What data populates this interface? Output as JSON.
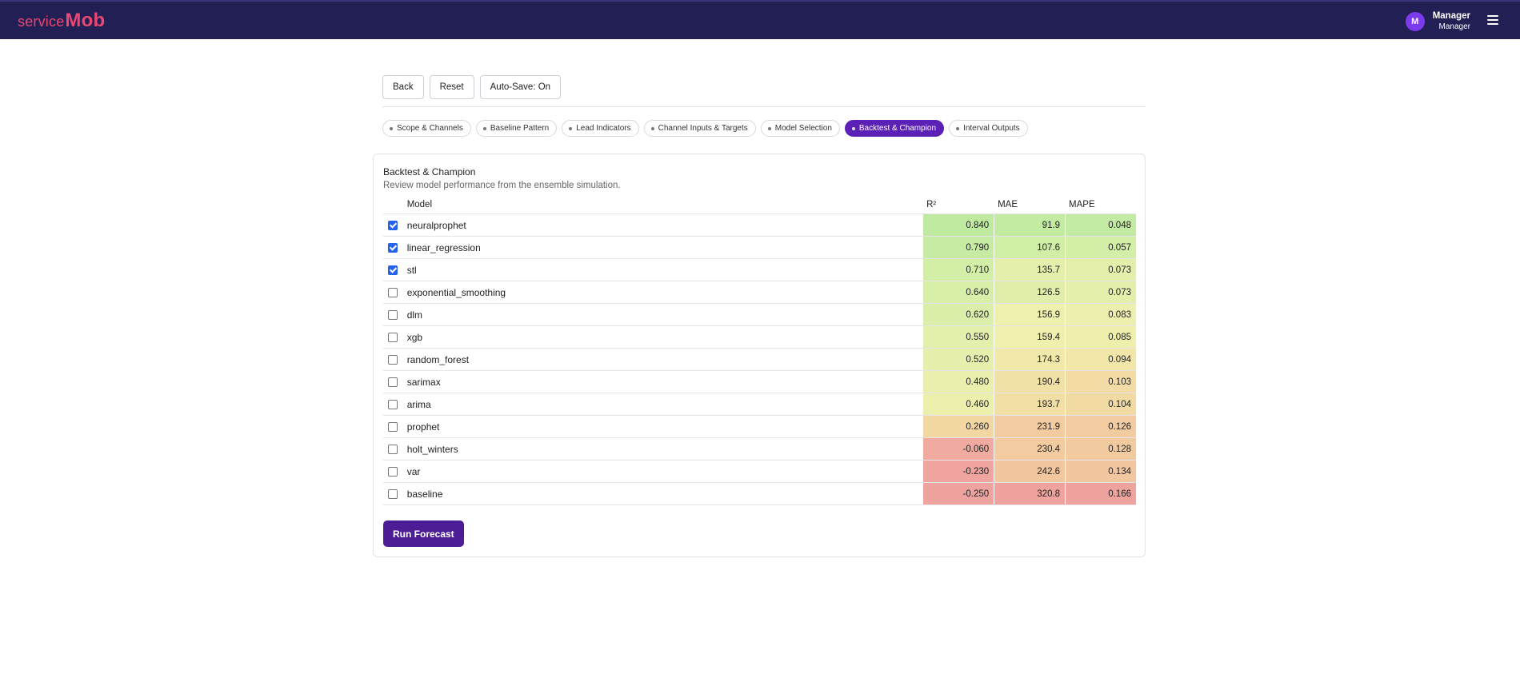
{
  "app": {
    "logo_text": "service",
    "logo_mark": "Mob",
    "user_initial": "M",
    "user_name": "Manager",
    "user_role": "Manager"
  },
  "toolbar": {
    "back_label": "Back",
    "reset_label": "Reset",
    "autosave_label": "Auto-Save: On"
  },
  "steps": [
    {
      "label": "Scope & Channels",
      "active": false
    },
    {
      "label": "Baseline Pattern",
      "active": false
    },
    {
      "label": "Lead Indicators",
      "active": false
    },
    {
      "label": "Channel Inputs & Targets",
      "active": false
    },
    {
      "label": "Model Selection",
      "active": false
    },
    {
      "label": "Backtest & Champion",
      "active": true
    },
    {
      "label": "Interval Outputs",
      "active": false
    }
  ],
  "card": {
    "title": "Backtest & Champion",
    "subtitle": "Review model performance from the ensemble simulation."
  },
  "table": {
    "headers": {
      "model": "Model",
      "r2": "R²",
      "mae": "MAE",
      "mape": "MAPE"
    },
    "rows": [
      {
        "model": "neuralprophet",
        "checked": true,
        "r2": "0.840",
        "mae": "91.9",
        "mape": "0.048",
        "colors": [
          "#bfeaa0",
          "#c3eba2",
          "#c4eba3"
        ]
      },
      {
        "model": "linear_regression",
        "checked": true,
        "r2": "0.790",
        "mae": "107.6",
        "mape": "0.057",
        "colors": [
          "#c6eca3",
          "#d0eea6",
          "#d2eea7"
        ]
      },
      {
        "model": "stl",
        "checked": true,
        "r2": "0.710",
        "mae": "135.7",
        "mape": "0.073",
        "colors": [
          "#d2eea7",
          "#e4efac",
          "#e4efac"
        ]
      },
      {
        "model": "exponential_smoothing",
        "checked": false,
        "r2": "0.640",
        "mae": "126.5",
        "mape": "0.073",
        "colors": [
          "#d8efa9",
          "#dfefab",
          "#e4efac"
        ]
      },
      {
        "model": "dlm",
        "checked": false,
        "r2": "0.620",
        "mae": "156.9",
        "mape": "0.083",
        "colors": [
          "#dcefaa",
          "#eef0ae",
          "#ecefad"
        ]
      },
      {
        "model": "xgb",
        "checked": false,
        "r2": "0.550",
        "mae": "159.4",
        "mape": "0.085",
        "colors": [
          "#e3efac",
          "#f0f0ae",
          "#eeefad"
        ]
      },
      {
        "model": "random_forest",
        "checked": false,
        "r2": "0.520",
        "mae": "174.3",
        "mape": "0.094",
        "colors": [
          "#e6efac",
          "#f1e9aa",
          "#f2e6a9"
        ]
      },
      {
        "model": "sarimax",
        "checked": false,
        "r2": "0.480",
        "mae": "190.4",
        "mape": "0.103",
        "colors": [
          "#eaefad",
          "#f2e1a6",
          "#f2dba4"
        ]
      },
      {
        "model": "arima",
        "checked": false,
        "r2": "0.460",
        "mae": "193.7",
        "mape": "0.104",
        "colors": [
          "#edefad",
          "#f2dfa5",
          "#f2daa4"
        ]
      },
      {
        "model": "prophet",
        "checked": false,
        "r2": "0.260",
        "mae": "231.9",
        "mape": "0.126",
        "colors": [
          "#f2d7a3",
          "#f2cba0",
          "#f2cba0"
        ]
      },
      {
        "model": "holt_winters",
        "checked": false,
        "r2": "-0.060",
        "mae": "230.4",
        "mape": "0.128",
        "colors": [
          "#f1aaa0",
          "#f2cba0",
          "#f2ca9f"
        ]
      },
      {
        "model": "var",
        "checked": false,
        "r2": "-0.230",
        "mae": "242.6",
        "mape": "0.134",
        "colors": [
          "#efa49f",
          "#f2c69f",
          "#f2c69f"
        ]
      },
      {
        "model": "baseline",
        "checked": false,
        "r2": "-0.250",
        "mae": "320.8",
        "mape": "0.166",
        "colors": [
          "#efa39f",
          "#efa39f",
          "#efa39f"
        ]
      }
    ]
  },
  "actions": {
    "run_label": "Run Forecast"
  }
}
